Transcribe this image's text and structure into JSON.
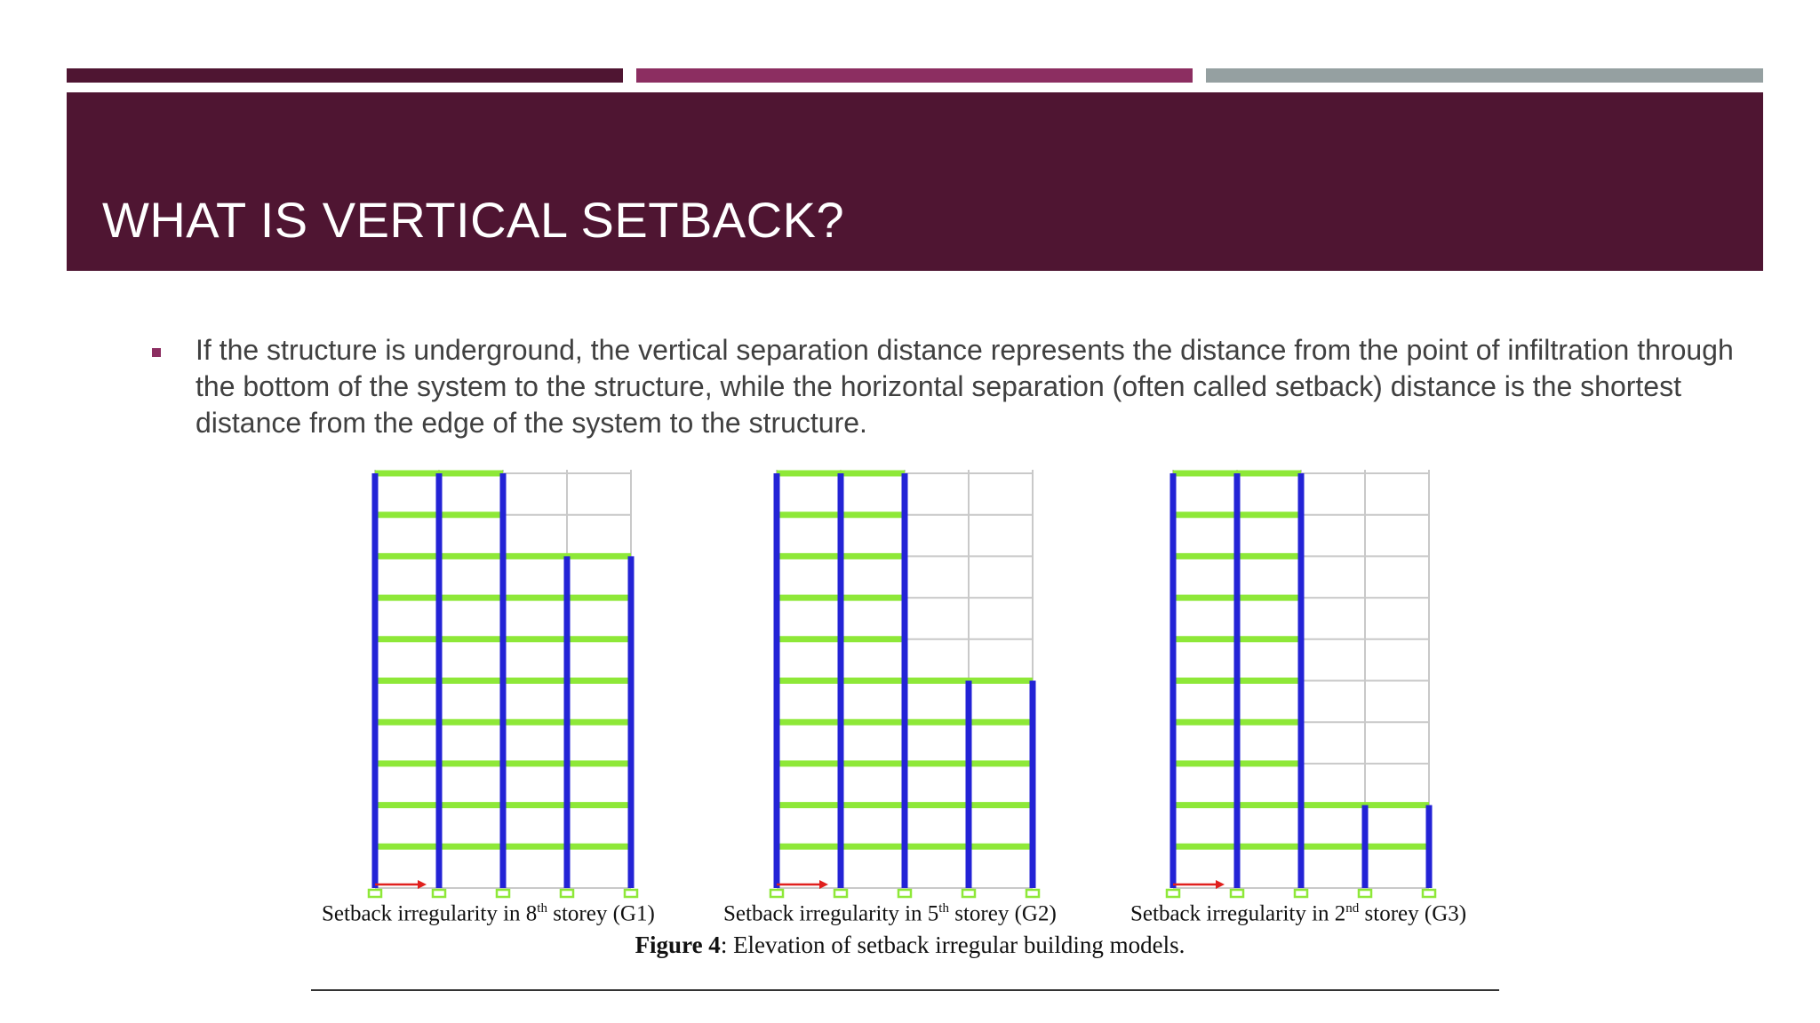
{
  "colors": {
    "bar1": "#4f1532",
    "bar2": "#8c2e61",
    "bar3": "#95a0a1",
    "header_bg": "#4f1532",
    "bullet": "#8c2e61",
    "column": "#2323d6",
    "beam": "#8ee838",
    "grid": "#c9c9c9",
    "axis": "#e0201e"
  },
  "slide": {
    "title": "WHAT IS VERTICAL SETBACK?",
    "bullets": [
      "If the structure is underground, the vertical separation distance represents the distance from the point of infiltration through the bottom of the system to the structure, while the horizontal separation (often called setback) distance is the shortest distance from the edge of the system to the structure."
    ]
  },
  "figure": {
    "captions": [
      {
        "pre": "Setback irregularity in 8",
        "sup": "th",
        "post": " storey (G1)"
      },
      {
        "pre": "Setback irregularity in 5",
        "sup": "th",
        "post": " storey (G2)"
      },
      {
        "pre": "Setback irregularity in 2",
        "sup": "nd",
        "post": " storey (G3)"
      }
    ],
    "title_bold": "Figure 4",
    "title_rest": ": Elevation of setback irregular building models.",
    "models": [
      {
        "bays": 4,
        "storeys": 10,
        "full_bays": 2,
        "setback_storey": 8
      },
      {
        "bays": 4,
        "storeys": 10,
        "full_bays": 2,
        "setback_storey": 5
      },
      {
        "bays": 4,
        "storeys": 10,
        "full_bays": 2,
        "setback_storey": 2
      }
    ]
  }
}
